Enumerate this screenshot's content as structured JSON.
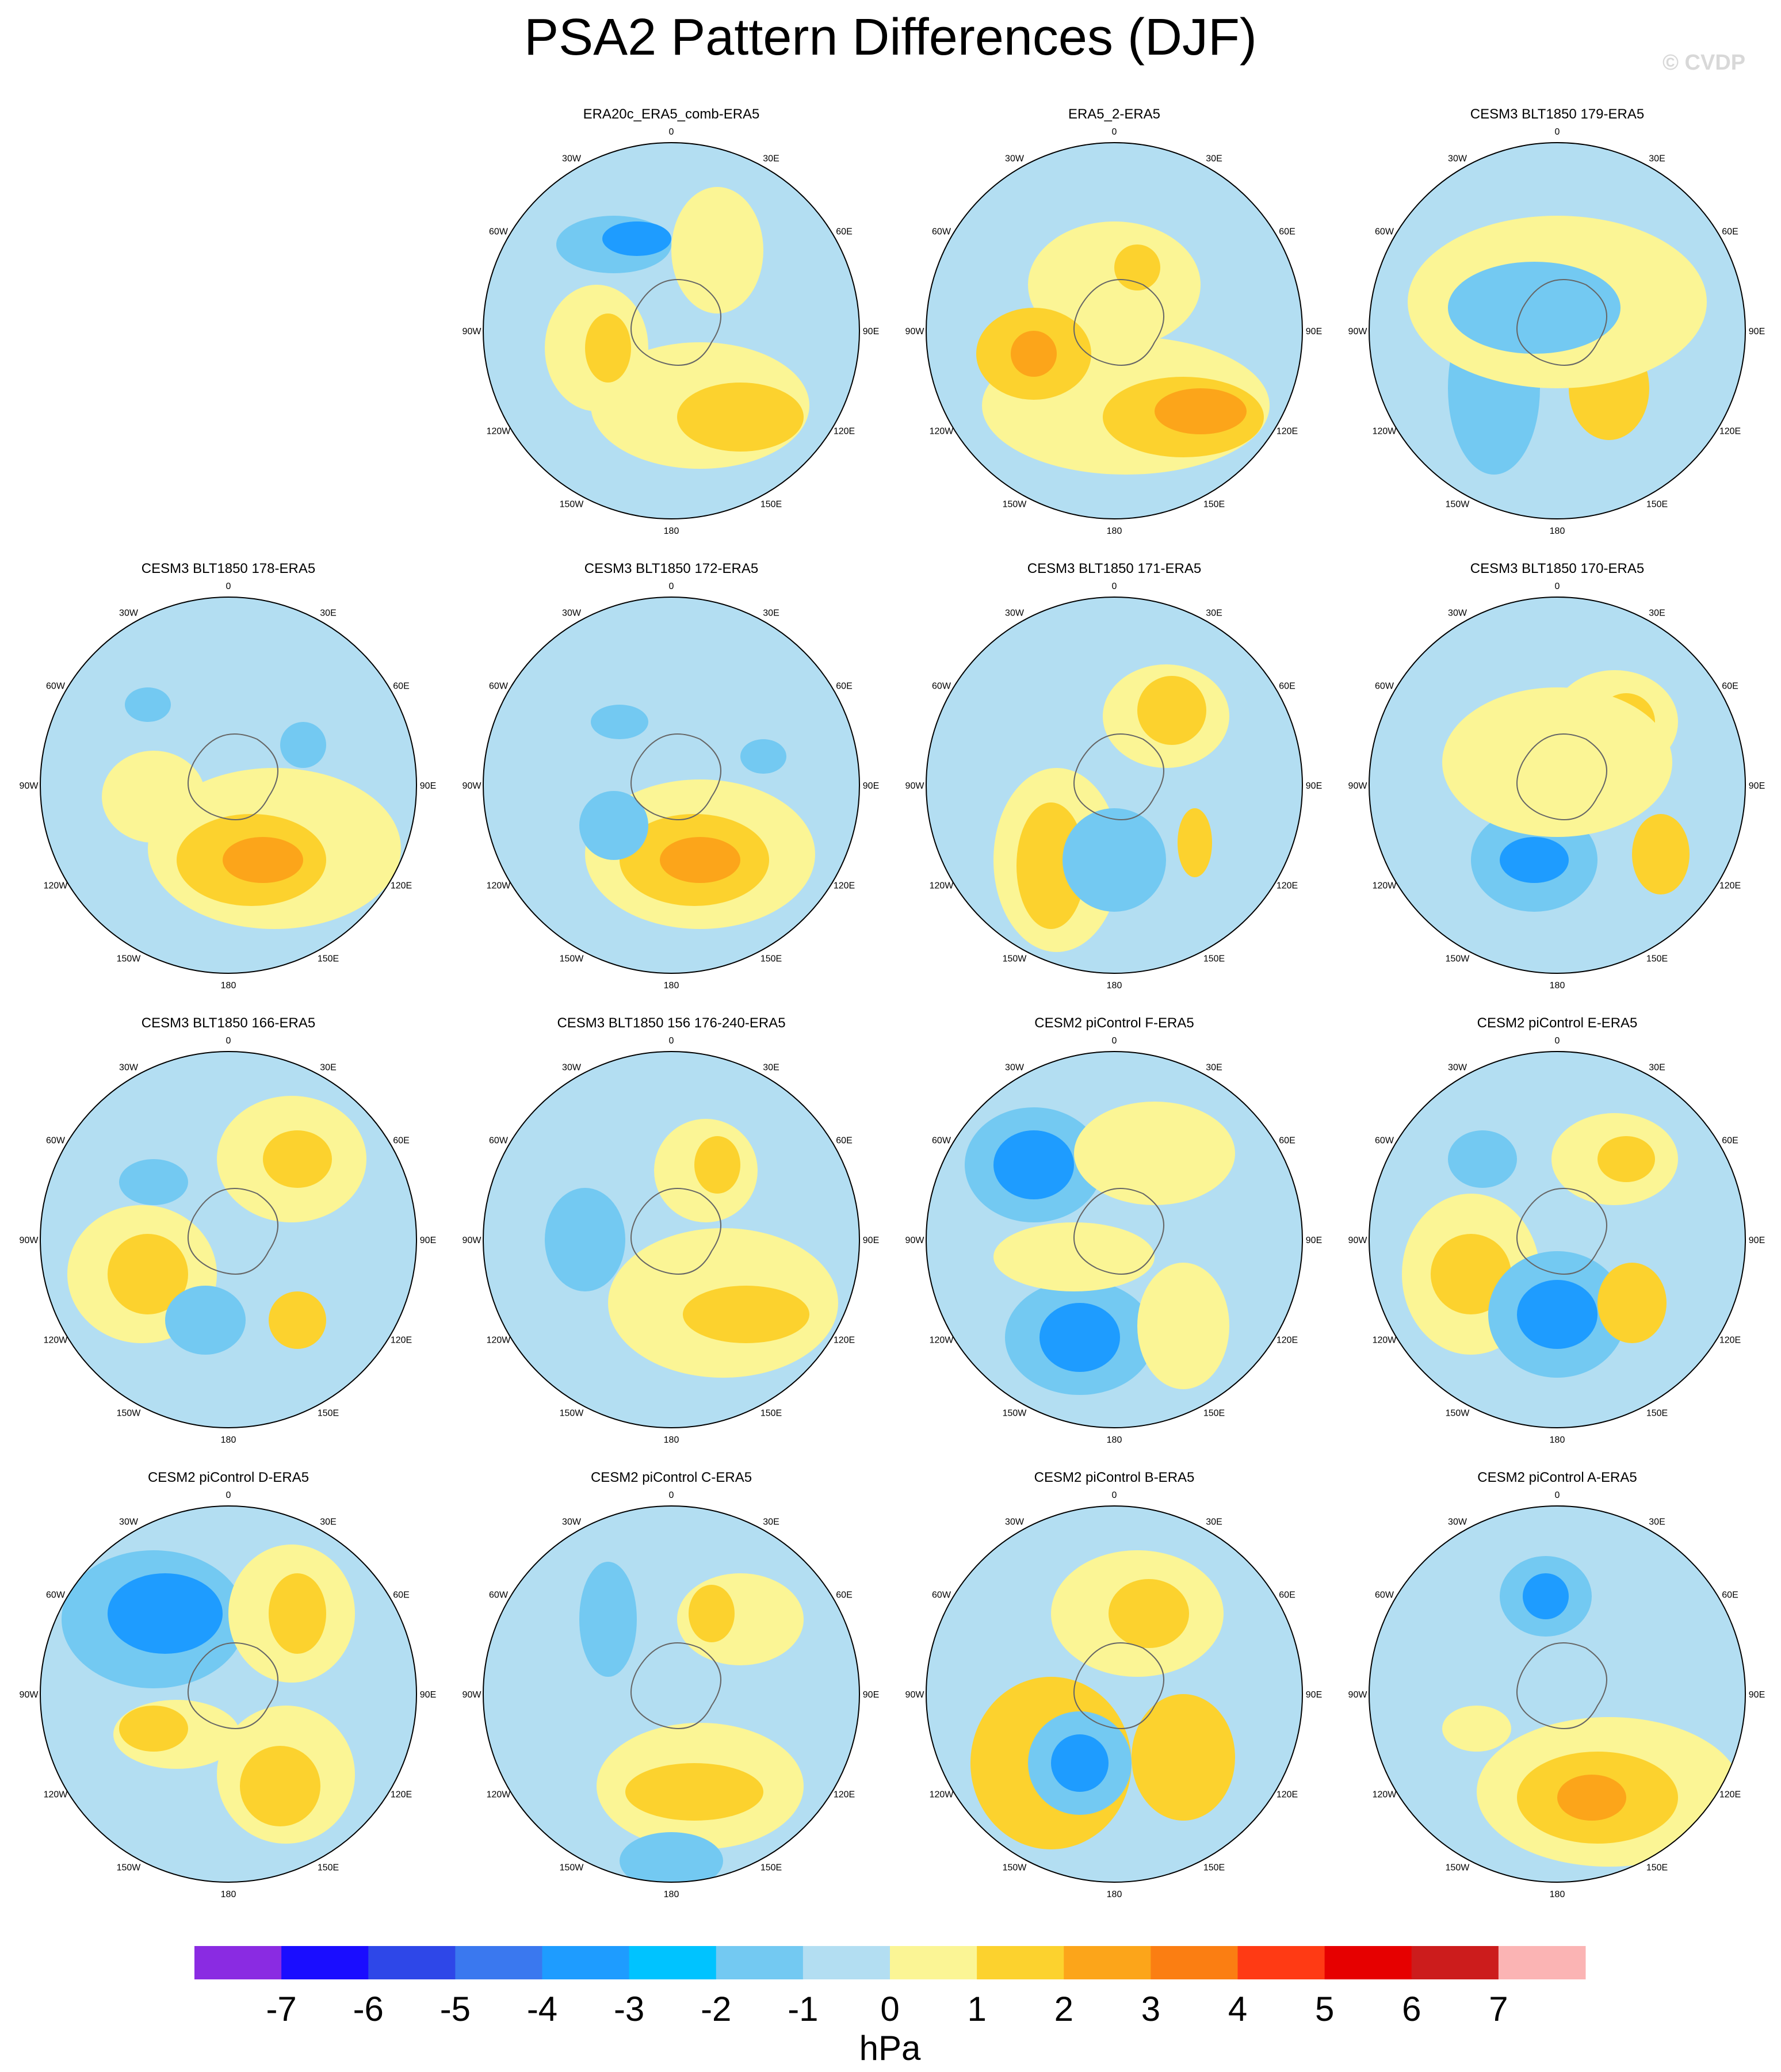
{
  "title": "PSA2 Pattern Differences (DJF)",
  "copyright": "© CVDP",
  "lon_labels": {
    "top": "0",
    "bottom": "180",
    "left": "90W",
    "right": "90E",
    "tl1": "30W",
    "tr1": "30E",
    "tl2": "60W",
    "tr2": "60E",
    "bl1": "120W",
    "br1": "120E",
    "bl2": "150W",
    "br2": "150E"
  },
  "panels": [
    {
      "title": "ERA20c_ERA5_comb-ERA5",
      "row": 0,
      "col": 1
    },
    {
      "title": "ERA5_2-ERA5",
      "row": 0,
      "col": 2
    },
    {
      "title": "CESM3 BLT1850 179-ERA5",
      "row": 0,
      "col": 3
    },
    {
      "title": "CESM3 BLT1850 178-ERA5",
      "row": 1,
      "col": 0
    },
    {
      "title": "CESM3 BLT1850 172-ERA5",
      "row": 1,
      "col": 1
    },
    {
      "title": "CESM3 BLT1850 171-ERA5",
      "row": 1,
      "col": 2
    },
    {
      "title": "CESM3 BLT1850 170-ERA5",
      "row": 1,
      "col": 3
    },
    {
      "title": "CESM3 BLT1850 166-ERA5",
      "row": 2,
      "col": 0
    },
    {
      "title": "CESM3 BLT1850 156 176-240-ERA5",
      "row": 2,
      "col": 1
    },
    {
      "title": "CESM2 piControl F-ERA5",
      "row": 2,
      "col": 2
    },
    {
      "title": "CESM2 piControl E-ERA5",
      "row": 2,
      "col": 3
    },
    {
      "title": "CESM2 piControl D-ERA5",
      "row": 3,
      "col": 0
    },
    {
      "title": "CESM2 piControl C-ERA5",
      "row": 3,
      "col": 1
    },
    {
      "title": "CESM2 piControl B-ERA5",
      "row": 3,
      "col": 2
    },
    {
      "title": "CESM2 piControl A-ERA5",
      "row": 3,
      "col": 3
    }
  ],
  "colorbar": {
    "unit": "hPa",
    "tick_labels": [
      "-7",
      "-6",
      "-5",
      "-4",
      "-3",
      "-2",
      "-1",
      "0",
      "1",
      "2",
      "3",
      "4",
      "5",
      "6",
      "7"
    ],
    "colors": [
      "#8a2be2",
      "#1a0dff",
      "#2e47e8",
      "#3a78ef",
      "#1e9cff",
      "#00c3ff",
      "#73c9f2",
      "#b3def2",
      "#fbf595",
      "#fcd22e",
      "#fca51a",
      "#fb7e12",
      "#ff3a14",
      "#e60000",
      "#cc1c1c",
      "#fbb4b4"
    ]
  },
  "map_colors": {
    "ocean": "#b3def2",
    "pos1": "#fbf595",
    "pos2": "#fcd22e",
    "pos3": "#fca51a",
    "pos4": "#fb7e12",
    "neg1": "#73c9f2",
    "neg2": "#1e9cff",
    "neg3": "#00c3ff"
  }
}
